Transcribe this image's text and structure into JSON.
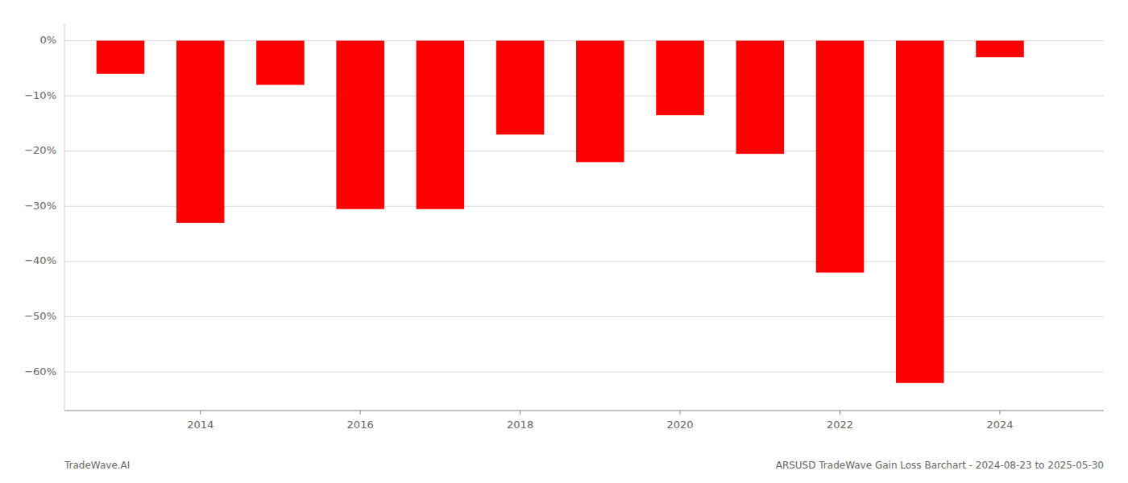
{
  "chart_data": {
    "type": "bar",
    "x": [
      2013,
      2014,
      2015,
      2016,
      2017,
      2018,
      2019,
      2020,
      2021,
      2022,
      2023,
      2024
    ],
    "values": [
      -6.0,
      -33.0,
      -8.0,
      -30.5,
      -30.5,
      -17.0,
      -22.0,
      -13.5,
      -20.5,
      -42.0,
      -62.0,
      -3.0
    ],
    "color": "#ff0000",
    "xlim": [
      2012.3,
      2025.3
    ],
    "xticks": [
      2014,
      2016,
      2018,
      2020,
      2022,
      2024
    ],
    "ylim": [
      -67,
      3
    ],
    "yticks": [
      {
        "value": 0,
        "label": "0%"
      },
      {
        "value": -10,
        "label": "−10%"
      },
      {
        "value": -20,
        "label": "−20%"
      },
      {
        "value": -30,
        "label": "−30%"
      },
      {
        "value": -40,
        "label": "−40%"
      },
      {
        "value": -50,
        "label": "−50%"
      },
      {
        "value": -60,
        "label": "−60%"
      }
    ],
    "grid": true,
    "annotations": [
      "TradeWave.AI",
      "ARSUSD TradeWave Gain Loss Barchart - 2024-08-23 to 2025-05-30"
    ]
  }
}
